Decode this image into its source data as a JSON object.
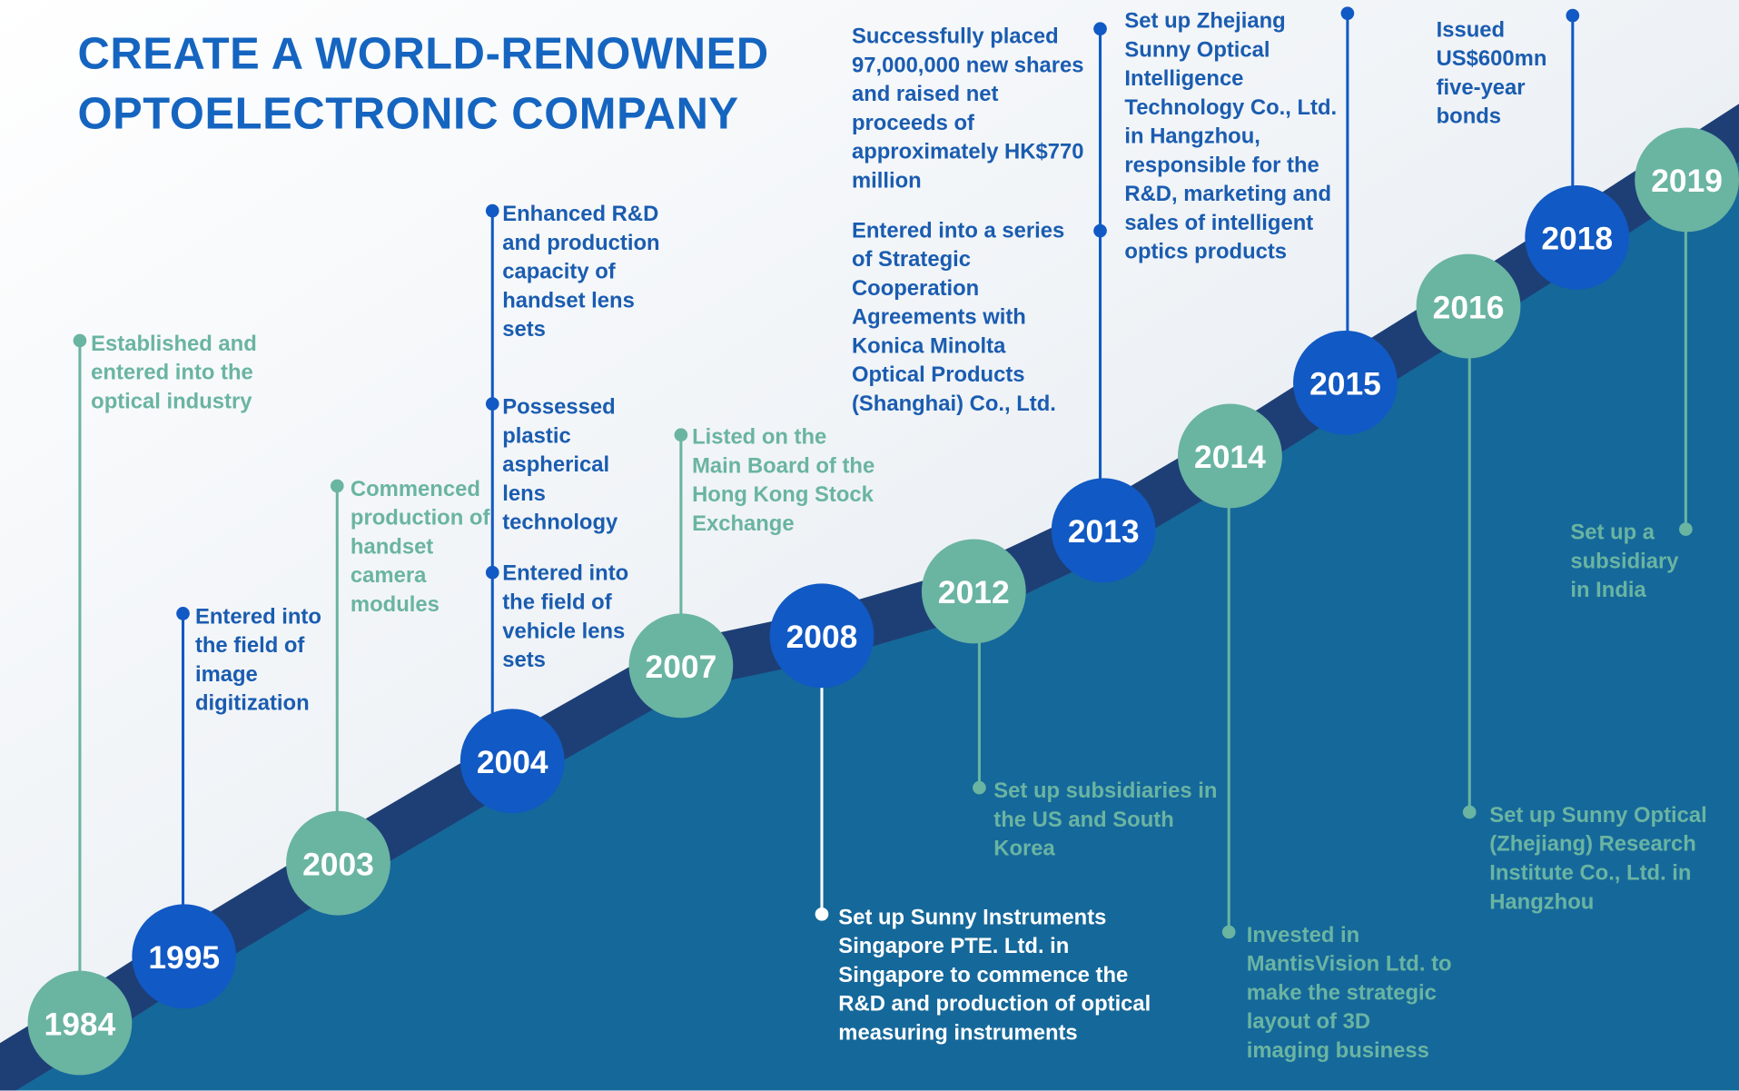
{
  "title": "CREATE A WORLD-RENOWNED OPTOELECTRONIC COMPANY",
  "milestones": [
    {
      "year": "1984",
      "events": [
        "Established and entered into the optical industry"
      ]
    },
    {
      "year": "1995",
      "events": [
        "Entered into the field of image digitization"
      ]
    },
    {
      "year": "2003",
      "events": [
        "Commenced production of handset camera modules"
      ]
    },
    {
      "year": "2004",
      "events": [
        "Enhanced R&D and production capacity of handset lens sets",
        "Possessed plastic aspherical lens technology",
        "Entered into the field of vehicle lens sets"
      ]
    },
    {
      "year": "2007",
      "events": [
        "Listed on the Main Board of the Hong Kong Stock Exchange"
      ]
    },
    {
      "year": "2008",
      "events": [
        "Set up Sunny Instruments Singapore PTE. Ltd. in Singapore to commence the R&D and production of optical measuring instruments"
      ]
    },
    {
      "year": "2012",
      "events": [
        "Set up subsidiaries in the US and South Korea"
      ]
    },
    {
      "year": "2013",
      "events": [
        "Successfully placed 97,000,000 new shares and raised net proceeds of approximately HK$770 million",
        "Entered into a series of Strategic Cooperation Agreements with Konica Minolta Optical Products (Shanghai) Co., Ltd."
      ]
    },
    {
      "year": "2014",
      "events": [
        "Invested in MantisVision Ltd. to make the strategic layout of 3D imaging business"
      ]
    },
    {
      "year": "2015",
      "events": [
        "Set up Zhejiang Sunny Optical Intelligence Technology Co., Ltd. in Hangzhou, responsible for the R&D, marketing and sales of intelligent optics products"
      ]
    },
    {
      "year": "2016",
      "events": [
        "Set up Sunny Optical (Zhejiang) Research Institute Co., Ltd. in Hangzhou"
      ]
    },
    {
      "year": "2018",
      "events": [
        "Issued US$600mn five-year bonds"
      ]
    },
    {
      "year": "2019",
      "events": [
        "Set up a subsidiary in India"
      ]
    }
  ]
}
